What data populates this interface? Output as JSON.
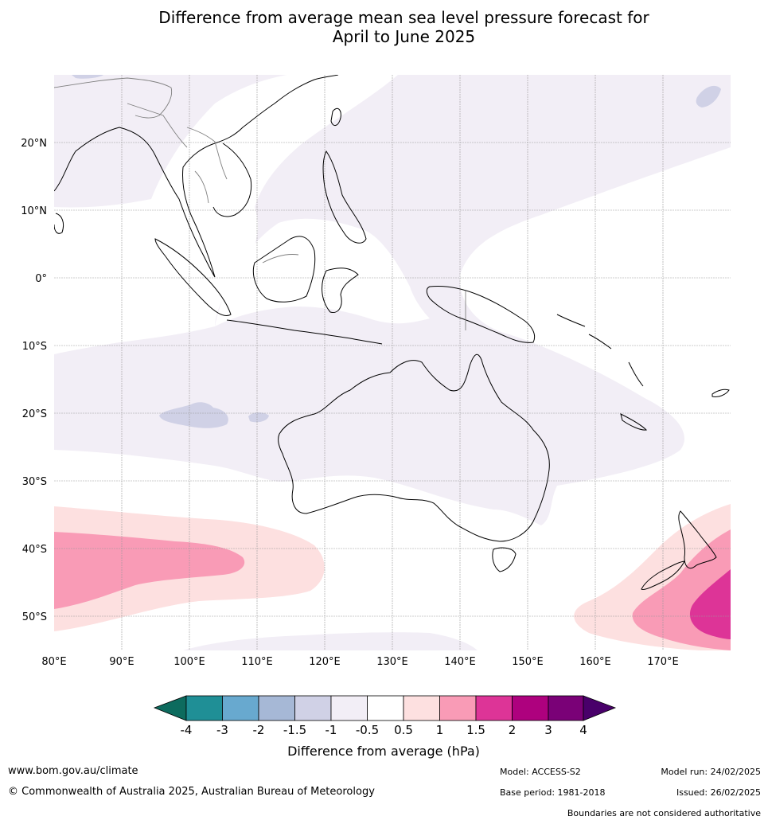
{
  "title": {
    "line1": "Difference from average mean sea level pressure forecast for",
    "line2": "April to June 2025"
  },
  "map": {
    "lon_labels": [
      "80°E",
      "90°E",
      "100°E",
      "110°E",
      "120°E",
      "130°E",
      "140°E",
      "150°E",
      "160°E",
      "170°E"
    ],
    "lat_labels": [
      "20°N",
      "10°N",
      "0°",
      "10°S",
      "20°S",
      "30°S",
      "40°S",
      "50°S"
    ],
    "extent": {
      "lon_min": 80,
      "lon_max": 180,
      "lat_min": -55,
      "lat_max": 30
    }
  },
  "colorbar": {
    "tick_labels": [
      "-4",
      "-3",
      "-2",
      "-1.5",
      "-1",
      "-0.5",
      "0.5",
      "1",
      "1.5",
      "2",
      "3",
      "4"
    ],
    "colors": [
      "#0d6b5e",
      "#1f8f96",
      "#68a9cf",
      "#a6b8d6",
      "#d0d1e6",
      "#f2eef6",
      "#ffffff",
      "#fde0e0",
      "#f99bb6",
      "#dd3497",
      "#ae017e",
      "#7a0177",
      "#49006a"
    ],
    "title": "Difference from average (hPa)"
  },
  "footer": {
    "url": "www.bom.gov.au/climate",
    "copyright": "© Commonwealth of Australia 2025, Australian Bureau of Meteorology",
    "model": "Model: ACCESS-S2",
    "base_period": "Base period: 1981-2018",
    "model_run": "Model run: 24/02/2025",
    "issued": "Issued: 26/02/2025",
    "disclaimer": "Boundaries are not considered authoritative"
  }
}
